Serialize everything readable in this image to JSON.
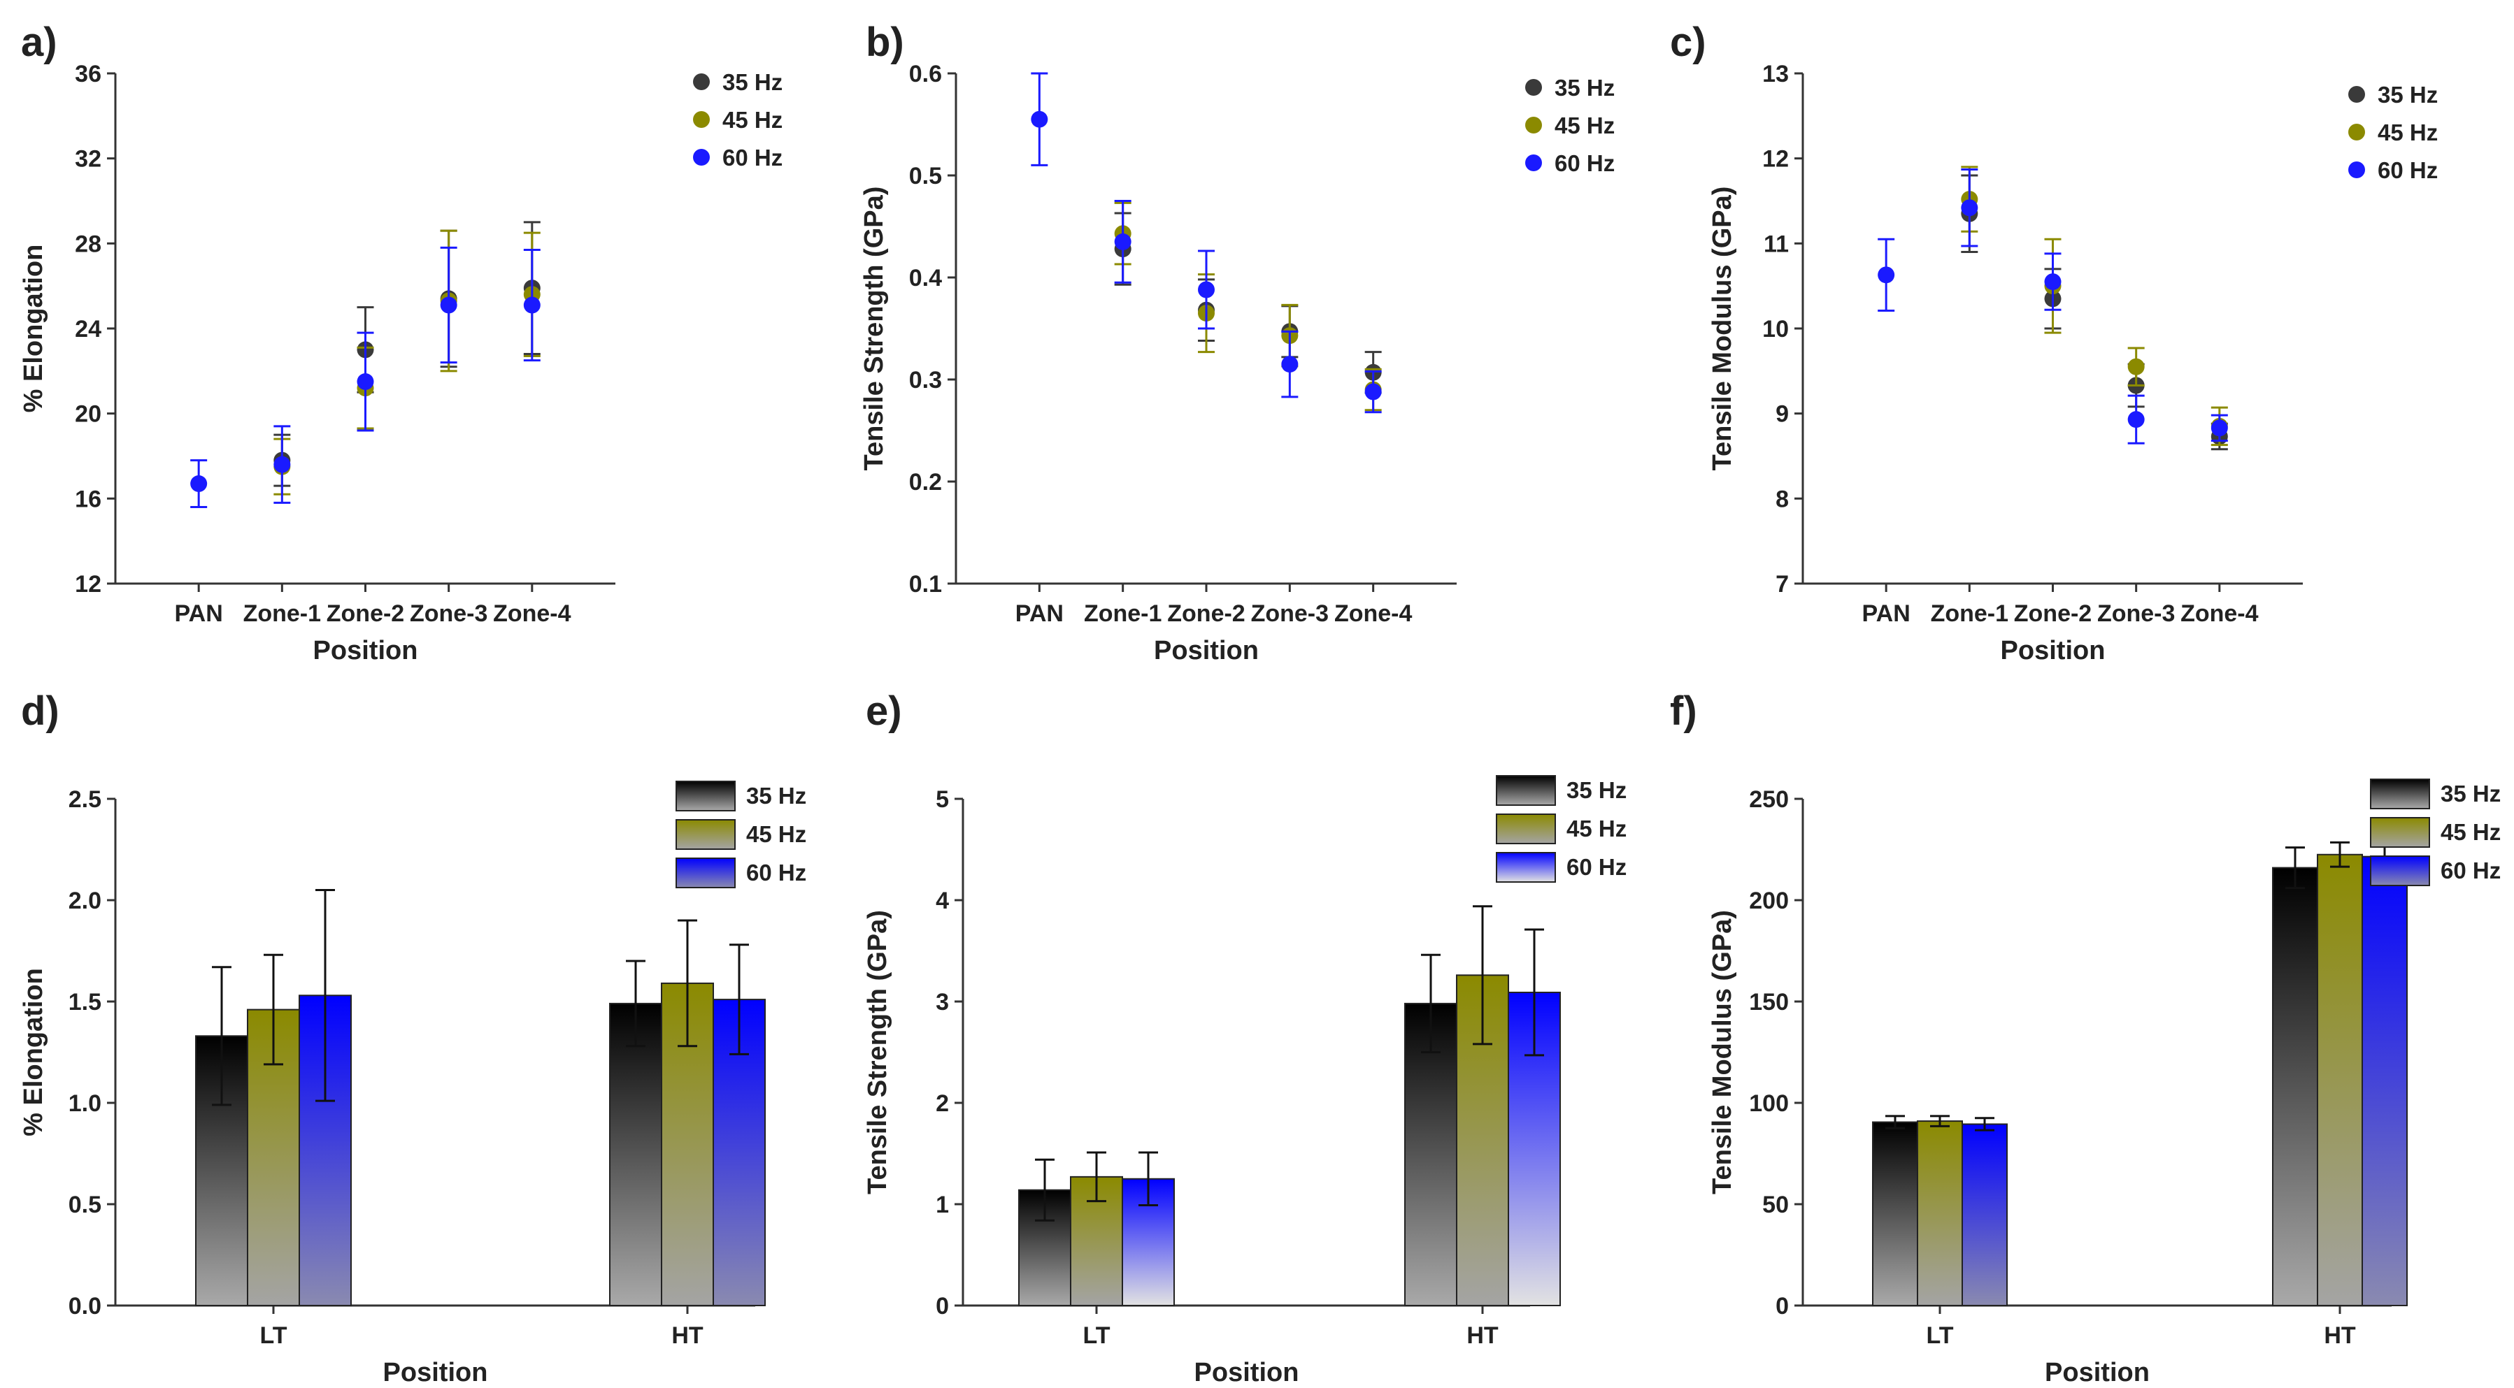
{
  "figure": {
    "palette": {
      "35 Hz": "#3a3a3a",
      "45 Hz": "#8b8a00",
      "60 Hz": "#1a1aff"
    }
  },
  "chart_data": [
    {
      "panel": "a)",
      "type": "scatter",
      "xlabel": "Position",
      "ylabel": "% Elongation",
      "categories": [
        "PAN",
        "Zone-1",
        "Zone-2",
        "Zone-3",
        "Zone-4"
      ],
      "ylim": [
        12,
        36
      ],
      "yticks": [
        12,
        16,
        20,
        24,
        28,
        32,
        36
      ],
      "ytick_labels": [
        "12",
        "16",
        "20",
        "24",
        "28",
        "32",
        "36"
      ],
      "legend": [
        "35 Hz",
        "45 Hz",
        "60 Hz"
      ],
      "series": [
        {
          "name": "35 Hz",
          "values": [
            null,
            17.8,
            23.0,
            25.4,
            25.9
          ],
          "errors": [
            null,
            1.2,
            2.0,
            3.2,
            3.1
          ]
        },
        {
          "name": "45 Hz",
          "values": [
            null,
            17.5,
            21.2,
            25.3,
            25.6
          ],
          "errors": [
            null,
            1.3,
            1.9,
            3.3,
            2.9
          ]
        },
        {
          "name": "60 Hz",
          "values": [
            16.7,
            17.6,
            21.5,
            25.1,
            25.1
          ],
          "errors": [
            1.1,
            1.8,
            2.3,
            2.7,
            2.6
          ]
        }
      ]
    },
    {
      "panel": "b)",
      "type": "scatter",
      "xlabel": "Position",
      "ylabel": "Tensile Strength (GPa)",
      "categories": [
        "PAN",
        "Zone-1",
        "Zone-2",
        "Zone-3",
        "Zone-4"
      ],
      "ylim": [
        0.1,
        0.6
      ],
      "yticks": [
        0.1,
        0.2,
        0.3,
        0.4,
        0.5,
        0.6
      ],
      "ytick_labels": [
        "0.1",
        "0.2",
        "0.3",
        "0.4",
        "0.5",
        "0.6"
      ],
      "legend": [
        "35 Hz",
        "45 Hz",
        "60 Hz"
      ],
      "series": [
        {
          "name": "35 Hz",
          "values": [
            null,
            0.428,
            0.368,
            0.347,
            0.307
          ],
          "errors": [
            null,
            0.035,
            0.03,
            0.025,
            0.02
          ]
        },
        {
          "name": "45 Hz",
          "values": [
            null,
            0.443,
            0.365,
            0.343,
            0.29
          ],
          "errors": [
            null,
            0.03,
            0.038,
            0.03,
            0.02
          ]
        },
        {
          "name": "60 Hz",
          "values": [
            0.555,
            0.435,
            0.388,
            0.315,
            0.288
          ],
          "errors": [
            0.045,
            0.04,
            0.038,
            0.032,
            0.02
          ]
        }
      ]
    },
    {
      "panel": "c)",
      "type": "scatter",
      "xlabel": "Position",
      "ylabel": "Tensile Modulus (GPa)",
      "categories": [
        "PAN",
        "Zone-1",
        "Zone-2",
        "Zone-3",
        "Zone-4"
      ],
      "ylim": [
        7,
        13
      ],
      "yticks": [
        7,
        8,
        9,
        10,
        11,
        12,
        13
      ],
      "ytick_labels": [
        "7",
        "8",
        "9",
        "10",
        "11",
        "12",
        "13"
      ],
      "legend": [
        "35 Hz",
        "45 Hz",
        "60 Hz"
      ],
      "series": [
        {
          "name": "35 Hz",
          "values": [
            null,
            11.35,
            10.35,
            9.33,
            8.73
          ],
          "errors": [
            null,
            0.45,
            0.35,
            0.25,
            0.15
          ]
        },
        {
          "name": "45 Hz",
          "values": [
            null,
            11.52,
            10.5,
            9.55,
            8.85
          ],
          "errors": [
            null,
            0.38,
            0.55,
            0.22,
            0.22
          ]
        },
        {
          "name": "60 Hz",
          "values": [
            10.63,
            11.42,
            10.55,
            8.93,
            8.83
          ],
          "errors": [
            0.42,
            0.45,
            0.33,
            0.28,
            0.15
          ]
        }
      ]
    },
    {
      "panel": "d)",
      "type": "bar",
      "xlabel": "Position",
      "ylabel": "% Elongation",
      "categories": [
        "LT",
        "HT"
      ],
      "ylim": [
        0,
        2.5
      ],
      "yticks": [
        0,
        0.5,
        1.0,
        1.5,
        2.0,
        2.5
      ],
      "ytick_labels": [
        "0.0",
        "0.5",
        "1.0",
        "1.5",
        "2.0",
        "2.5"
      ],
      "legend": [
        "35 Hz",
        "45 Hz",
        "60 Hz"
      ],
      "series": [
        {
          "name": "35 Hz",
          "values": [
            1.33,
            1.49
          ],
          "errors": [
            0.34,
            0.21
          ]
        },
        {
          "name": "45 Hz",
          "values": [
            1.46,
            1.59
          ],
          "errors": [
            0.27,
            0.31
          ]
        },
        {
          "name": "60 Hz",
          "values": [
            1.53,
            1.51
          ],
          "errors": [
            0.52,
            0.27
          ]
        }
      ]
    },
    {
      "panel": "e)",
      "type": "bar",
      "xlabel": "Position",
      "ylabel": "Tensile Strength (GPa)",
      "categories": [
        "LT",
        "HT"
      ],
      "ylim": [
        0,
        5
      ],
      "yticks": [
        0,
        1,
        2,
        3,
        4,
        5
      ],
      "ytick_labels": [
        "0",
        "1",
        "2",
        "3",
        "4",
        "5"
      ],
      "legend": [
        "35 Hz",
        "45 Hz",
        "60 Hz"
      ],
      "series": [
        {
          "name": "35 Hz",
          "values": [
            1.14,
            2.98
          ],
          "errors": [
            0.3,
            0.48
          ]
        },
        {
          "name": "45 Hz",
          "values": [
            1.27,
            3.26
          ],
          "errors": [
            0.24,
            0.68
          ]
        },
        {
          "name": "60 Hz",
          "values": [
            1.25,
            3.09
          ],
          "errors": [
            0.26,
            0.62
          ]
        }
      ]
    },
    {
      "panel": "f)",
      "type": "bar",
      "xlabel": "Position",
      "ylabel": "Tensile Modulus (GPa)",
      "categories": [
        "LT",
        "HT"
      ],
      "ylim": [
        0,
        250
      ],
      "yticks": [
        0,
        50,
        100,
        150,
        200,
        250
      ],
      "ytick_labels": [
        "0",
        "50",
        "100",
        "150",
        "200",
        "250"
      ],
      "legend": [
        "35 Hz",
        "45 Hz",
        "60 Hz"
      ],
      "series": [
        {
          "name": "35 Hz",
          "values": [
            90.5,
            216.0
          ],
          "errors": [
            3.0,
            10.0
          ]
        },
        {
          "name": "45 Hz",
          "values": [
            91.0,
            222.5
          ],
          "errors": [
            2.5,
            6.0
          ]
        },
        {
          "name": "60 Hz",
          "values": [
            89.5,
            221.5
          ],
          "errors": [
            3.0,
            9.0
          ]
        }
      ]
    }
  ]
}
